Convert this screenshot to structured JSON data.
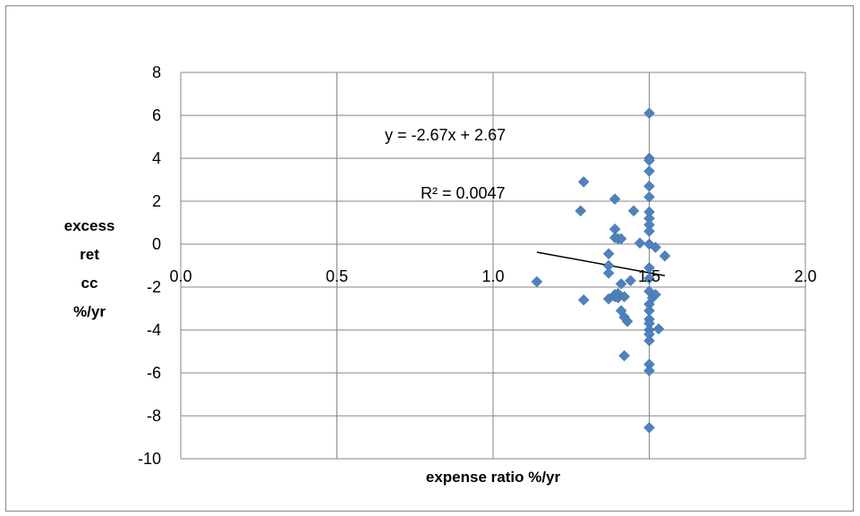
{
  "chart_data": {
    "type": "scatter",
    "title": "",
    "xlabel": "expense ratio %/yr",
    "ylabel_lines": [
      "excess",
      "ret",
      "cc",
      "%/yr"
    ],
    "xlim": [
      0,
      2
    ],
    "ylim": [
      -10,
      8
    ],
    "x_ticks": [
      "0.0",
      "0.5",
      "1.0",
      "1.5",
      "2.0"
    ],
    "y_ticks": [
      "8",
      "6",
      "4",
      "2",
      "0",
      "-2",
      "-4",
      "-6",
      "-8",
      "-10"
    ],
    "grid": true,
    "marker_color": "#4F81BD",
    "series": [
      {
        "points": [
          [
            1.14,
            -1.75
          ],
          [
            1.28,
            1.55
          ],
          [
            1.29,
            2.9
          ],
          [
            1.29,
            -2.6
          ],
          [
            1.37,
            -0.45
          ],
          [
            1.37,
            -1.0
          ],
          [
            1.37,
            -1.35
          ],
          [
            1.37,
            -2.55
          ],
          [
            1.39,
            0.3
          ],
          [
            1.39,
            0.7
          ],
          [
            1.39,
            2.1
          ],
          [
            1.39,
            -2.35
          ],
          [
            1.39,
            -2.45
          ],
          [
            1.4,
            0.25
          ],
          [
            1.4,
            -2.3
          ],
          [
            1.4,
            -2.5
          ],
          [
            1.41,
            0.25
          ],
          [
            1.41,
            -1.85
          ],
          [
            1.41,
            -3.1
          ],
          [
            1.42,
            -2.45
          ],
          [
            1.42,
            -3.4
          ],
          [
            1.42,
            -5.2
          ],
          [
            1.43,
            -3.6
          ],
          [
            1.44,
            -1.7
          ],
          [
            1.45,
            1.55
          ],
          [
            1.47,
            0.05
          ],
          [
            1.5,
            6.1
          ],
          [
            1.5,
            4.0
          ],
          [
            1.5,
            3.9
          ],
          [
            1.5,
            3.4
          ],
          [
            1.5,
            2.7
          ],
          [
            1.5,
            2.2
          ],
          [
            1.5,
            1.5
          ],
          [
            1.5,
            1.2
          ],
          [
            1.5,
            0.9
          ],
          [
            1.5,
            0.6
          ],
          [
            1.5,
            0.0
          ],
          [
            1.5,
            -1.1
          ],
          [
            1.5,
            -1.6
          ],
          [
            1.5,
            -2.2
          ],
          [
            1.5,
            -2.8
          ],
          [
            1.5,
            -3.1
          ],
          [
            1.5,
            -3.5
          ],
          [
            1.5,
            -3.7
          ],
          [
            1.5,
            -4.0
          ],
          [
            1.5,
            -4.2
          ],
          [
            1.5,
            -4.5
          ],
          [
            1.5,
            -5.6
          ],
          [
            1.5,
            -5.9
          ],
          [
            1.5,
            -8.55
          ],
          [
            1.51,
            -2.5
          ],
          [
            1.52,
            -0.15
          ],
          [
            1.52,
            -2.35
          ],
          [
            1.53,
            -3.95
          ],
          [
            1.55,
            -0.55
          ]
        ]
      }
    ],
    "trendline": {
      "x_start": 1.14,
      "x_end": 1.55
    },
    "equation": "y = -2.67x + 2.67",
    "r_squared": "R² = 0.0047"
  }
}
